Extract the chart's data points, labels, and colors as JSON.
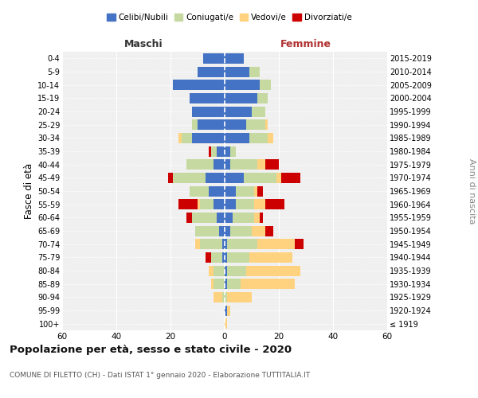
{
  "age_groups": [
    "100+",
    "95-99",
    "90-94",
    "85-89",
    "80-84",
    "75-79",
    "70-74",
    "65-69",
    "60-64",
    "55-59",
    "50-54",
    "45-49",
    "40-44",
    "35-39",
    "30-34",
    "25-29",
    "20-24",
    "15-19",
    "10-14",
    "5-9",
    "0-4"
  ],
  "birth_years": [
    "≤ 1919",
    "1920-1924",
    "1925-1929",
    "1930-1934",
    "1935-1939",
    "1940-1944",
    "1945-1949",
    "1950-1954",
    "1955-1959",
    "1960-1964",
    "1965-1969",
    "1970-1974",
    "1975-1979",
    "1980-1984",
    "1985-1989",
    "1990-1994",
    "1995-1999",
    "2000-2004",
    "2005-2009",
    "2010-2014",
    "2015-2019"
  ],
  "maschi": {
    "celibi": [
      0,
      0,
      0,
      0,
      0,
      1,
      1,
      2,
      3,
      4,
      6,
      7,
      4,
      3,
      12,
      10,
      12,
      13,
      19,
      10,
      8
    ],
    "coniugati": [
      0,
      0,
      1,
      4,
      4,
      4,
      8,
      9,
      9,
      5,
      7,
      12,
      10,
      2,
      4,
      2,
      0,
      0,
      0,
      0,
      0
    ],
    "vedovi": [
      0,
      0,
      3,
      1,
      2,
      0,
      2,
      0,
      0,
      1,
      0,
      0,
      0,
      0,
      1,
      0,
      0,
      0,
      0,
      0,
      0
    ],
    "divorziati": [
      0,
      0,
      0,
      0,
      0,
      2,
      0,
      0,
      2,
      7,
      0,
      2,
      0,
      1,
      0,
      0,
      0,
      0,
      0,
      0,
      0
    ]
  },
  "femmine": {
    "nubili": [
      0,
      1,
      0,
      1,
      1,
      1,
      1,
      2,
      3,
      4,
      4,
      7,
      2,
      2,
      9,
      8,
      10,
      12,
      13,
      9,
      7
    ],
    "coniugate": [
      0,
      0,
      1,
      5,
      7,
      8,
      11,
      8,
      8,
      7,
      7,
      12,
      10,
      2,
      7,
      7,
      5,
      4,
      4,
      4,
      0
    ],
    "vedove": [
      1,
      1,
      9,
      20,
      20,
      16,
      14,
      5,
      2,
      4,
      1,
      2,
      3,
      0,
      2,
      1,
      0,
      0,
      0,
      0,
      0
    ],
    "divorziate": [
      0,
      0,
      0,
      0,
      0,
      0,
      3,
      3,
      1,
      7,
      2,
      7,
      5,
      0,
      0,
      0,
      0,
      0,
      0,
      0,
      0
    ]
  },
  "colors": {
    "celibi": "#4472c4",
    "coniugati": "#c5d9a0",
    "vedovi": "#ffd280",
    "divorziati": "#cc0000"
  },
  "xlim": 60,
  "title": "Popolazione per età, sesso e stato civile - 2020",
  "subtitle": "COMUNE DI FILETTO (CH) - Dati ISTAT 1° gennaio 2020 - Elaborazione TUTTITALIA.IT",
  "ylabel_left": "Fasce di età",
  "ylabel_right": "Anni di nascita",
  "xlabel_left": "Maschi",
  "xlabel_right": "Femmine",
  "bg_color": "#f0f0f0",
  "legend_labels": [
    "Celibi/Nubili",
    "Coniugati/e",
    "Vedovi/e",
    "Divorziati/e"
  ],
  "xticks": [
    -60,
    -40,
    -20,
    0,
    20,
    40,
    60
  ]
}
